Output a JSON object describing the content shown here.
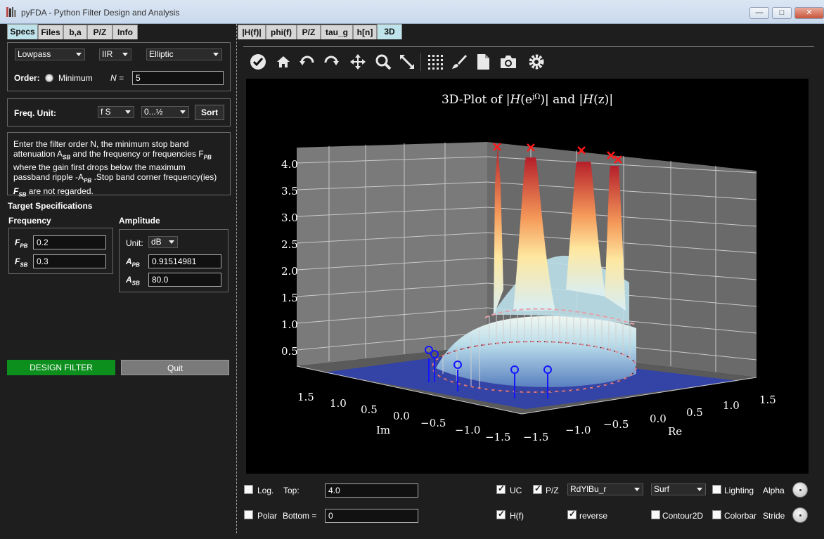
{
  "window": {
    "title": "pyFDA - Python Filter Design and Analysis",
    "minimize": "—",
    "maximize": "□",
    "close": "✕"
  },
  "left_tabs": [
    "Specs",
    "Files",
    "b,a",
    "P/Z",
    "Info"
  ],
  "filter_select": {
    "response_type": "Lowpass",
    "filter_class": "IIR",
    "design_method": "Elliptic",
    "order_label": "Order:",
    "minimum_label": "Minimum",
    "n_label": "N =",
    "n_value": "5"
  },
  "freq_unit": {
    "label": "Freq. Unit:",
    "unit": "f S",
    "range": "0...½",
    "sort_label": "Sort"
  },
  "info_text": {
    "line1": "Enter the filter order N, the minimum stop band",
    "line2": "attenuation A",
    "line2_sub": "SB",
    "line2_rest": " and the frequency or frequencies F",
    "line2_sub2": "PB",
    "line3": "where the gain first drops below the maximum",
    "line4": "passband ripple -A",
    "line4_sub": "PB",
    "line4_rest": " .Stop band corner frequency(ies)",
    "line5": "F",
    "line5_sub": "SB",
    "line5_rest": " are not regarded."
  },
  "target_specs": {
    "heading": "Target Specifications",
    "frequency_heading": "Frequency",
    "amplitude_heading": "Amplitude",
    "f_pb_label": "F",
    "f_pb_sub": "PB",
    "f_pb_value": "0.2",
    "f_sb_label": "F",
    "f_sb_sub": "SB",
    "f_sb_value": "0.3",
    "unit_label": "Unit:",
    "unit_value": "dB",
    "a_pb_label": "A",
    "a_pb_sub": "PB",
    "a_pb_value": "0.91514981",
    "a_sb_label": "A",
    "a_sb_sub": "SB",
    "a_sb_value": "80.0"
  },
  "actions": {
    "design_filter": "DESIGN FILTER",
    "quit": "Quit"
  },
  "right_tabs": [
    "|H(f)|",
    "phi(f)",
    "P/Z",
    "tau_g",
    "h[n]",
    "3D"
  ],
  "toolbar_icons": [
    "checkmark-icon",
    "home-icon",
    "undo-icon",
    "redo-icon",
    "pan-icon",
    "zoom-icon",
    "fullscreen-icon",
    "grid-icon",
    "brush-icon",
    "document-icon",
    "camera-icon",
    "settings-icon"
  ],
  "plot": {
    "title_prefix": "3D-Plot of |",
    "title_H1": "H",
    "title_ejw": "(e",
    "title_sup": "jΩ",
    "title_mid": ")| and |",
    "title_H2": "H",
    "title_z": "(z)|",
    "z_ticks": [
      "0.5",
      "1.0",
      "1.5",
      "2.0",
      "2.5",
      "3.0",
      "3.5",
      "4.0"
    ],
    "im_ticks": [
      "1.5",
      "1.0",
      "0.5",
      "0.0",
      "−0.5",
      "−1.0",
      "−1.5"
    ],
    "re_ticks": [
      "−1.5",
      "−1.0",
      "−0.5",
      "0.0",
      "0.5",
      "1.0",
      "1.5"
    ],
    "im_label": "Im",
    "re_label": "Re"
  },
  "controls": {
    "log_label": "Log.",
    "top_label": "Top:",
    "top_value": "4.0",
    "polar_label": "Polar",
    "bottom_label": "Bottom =",
    "bottom_value": "0",
    "uc_label": "UC",
    "pz_label": "P/Z",
    "colormap": "RdYlBu_r",
    "plot_type": "Surf",
    "lighting_label": "Lighting",
    "alpha_label": "Alpha",
    "hf_label": "H(f)",
    "reverse_label": "reverse",
    "contour_label": "Contour2D",
    "colorbar_label": "Colorbar",
    "stride_label": "Stride",
    "uc_checked": true,
    "pz_checked": true,
    "hf_checked": true,
    "reverse_checked": true,
    "log_checked": false,
    "polar_checked": false,
    "lighting_checked": false,
    "contour_checked": false,
    "colorbar_checked": false
  }
}
